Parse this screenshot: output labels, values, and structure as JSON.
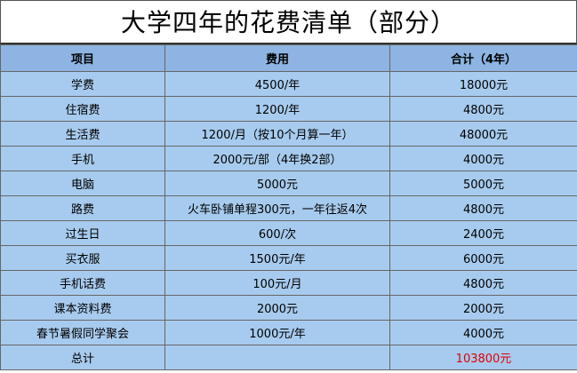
{
  "title": "大学四年的花费清单（部分）",
  "table": {
    "header": [
      "项目",
      "费用",
      "合计（4年）"
    ],
    "rows": [
      [
        "学费",
        "4500/年",
        "18000元"
      ],
      [
        "住宿费",
        "1200/年",
        "4800元"
      ],
      [
        "生活费",
        "1200/月（按10个月算一年）",
        "48000元"
      ],
      [
        "手机",
        "2000元/部（4年换2部）",
        "4000元"
      ],
      [
        "电脑",
        "5000元",
        "5000元"
      ],
      [
        "路费",
        "火车卧铺单程300元，一年往返4次",
        "4800元"
      ],
      [
        "过生日",
        "600/次",
        "2400元"
      ],
      [
        "买衣服",
        "1500元/年",
        "6000元"
      ],
      [
        "手机话费",
        "100元/月",
        "4800元"
      ],
      [
        "课本资料费",
        "2000元",
        "2000元"
      ],
      [
        "春节暑假同学聚会",
        "1000元/年",
        "4000元"
      ],
      [
        "总计",
        "",
        "103800元"
      ]
    ]
  }
}
